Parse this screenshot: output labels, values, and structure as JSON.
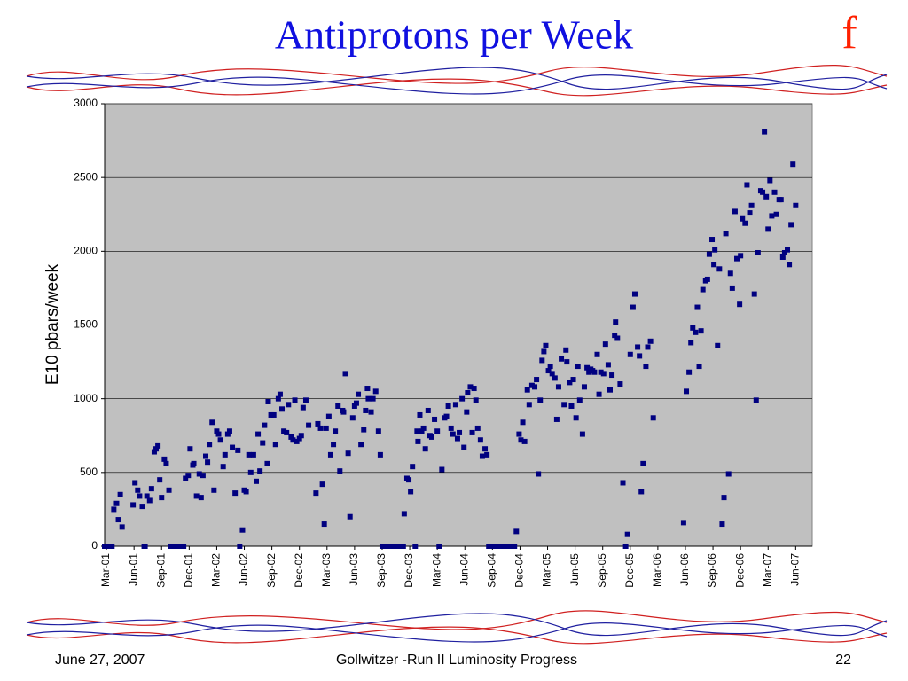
{
  "slide": {
    "title": "Antiprotons per Week",
    "logo": "f",
    "footer_left": "June 27, 2007",
    "footer_center": "Gollwitzer -Run II Luminosity Progress",
    "footer_right": "22"
  },
  "chart_data": {
    "type": "scatter",
    "ylabel": "E10 pbars/week",
    "color": "#000080",
    "plot_background": "#c0c0c0",
    "grid": true,
    "xlim": [
      -0.2,
      76.8
    ],
    "xticks": [
      {
        "value": 0,
        "label": "Mar-01"
      },
      {
        "value": 3,
        "label": "Jun-01"
      },
      {
        "value": 6,
        "label": "Sep-01"
      },
      {
        "value": 9,
        "label": "Dec-01"
      },
      {
        "value": 12,
        "label": "Mar-02"
      },
      {
        "value": 15,
        "label": "Jun-02"
      },
      {
        "value": 18,
        "label": "Sep-02"
      },
      {
        "value": 21,
        "label": "Dec-02"
      },
      {
        "value": 24,
        "label": "Mar-03"
      },
      {
        "value": 27,
        "label": "Jun-03"
      },
      {
        "value": 30,
        "label": "Sep-03"
      },
      {
        "value": 33,
        "label": "Dec-03"
      },
      {
        "value": 36,
        "label": "Mar-04"
      },
      {
        "value": 39,
        "label": "Jun-04"
      },
      {
        "value": 42,
        "label": "Sep-04"
      },
      {
        "value": 45,
        "label": "Dec-04"
      },
      {
        "value": 48,
        "label": "Mar-05"
      },
      {
        "value": 51,
        "label": "Jun-05"
      },
      {
        "value": 54,
        "label": "Sep-05"
      },
      {
        "value": 57,
        "label": "Dec-05"
      },
      {
        "value": 60,
        "label": "Mar-06"
      },
      {
        "value": 63,
        "label": "Jun-06"
      },
      {
        "value": 66,
        "label": "Sep-06"
      },
      {
        "value": 69,
        "label": "Dec-06"
      },
      {
        "value": 72,
        "label": "Mar-07"
      },
      {
        "value": 75,
        "label": "Jun-07"
      }
    ],
    "ylim": [
      0,
      3000
    ],
    "yticks": [
      0,
      500,
      1000,
      1500,
      2000,
      2500,
      3000
    ],
    "x": [
      -0.2,
      0,
      0.3,
      0.6,
      0.8,
      1.1,
      1.3,
      1.5,
      1.7,
      2.9,
      3.1,
      3.4,
      3.6,
      3.9,
      4.1,
      4.2,
      4.4,
      4.7,
      4.9,
      5.2,
      5.4,
      5.6,
      5.8,
      6.0,
      6.3,
      6.5,
      6.8,
      7.0,
      7.2,
      7.5,
      7.7,
      8.0,
      8.2,
      8.4,
      8.6,
      8.9,
      9.1,
      9.4,
      9.5,
      9.8,
      10.1,
      10.3,
      10.5,
      10.8,
      11.0,
      11.2,
      11.5,
      11.7,
      12.0,
      12.2,
      12.4,
      12.7,
      12.9,
      13.2,
      13.4,
      13.7,
      14.0,
      14.3,
      14.5,
      14.8,
      15.0,
      15.2,
      15.5,
      15.7,
      16.0,
      16.3,
      16.5,
      16.7,
      17.0,
      17.2,
      17.5,
      17.6,
      17.9,
      18.2,
      18.4,
      18.7,
      18.9,
      19.1,
      19.3,
      19.6,
      19.8,
      20.1,
      20.3,
      20.5,
      20.7,
      21.0,
      21.2,
      21.4,
      21.7,
      22.0,
      22.8,
      23.0,
      23.3,
      23.5,
      23.7,
      23.9,
      24.2,
      24.4,
      24.7,
      24.9,
      25.2,
      25.4,
      25.7,
      25.8,
      26.0,
      26.3,
      26.5,
      26.8,
      27.0,
      27.2,
      27.4,
      27.7,
      28.0,
      28.2,
      28.4,
      28.5,
      28.8,
      29.0,
      29.3,
      29.6,
      29.8,
      30.0,
      30.2,
      30.5,
      30.7,
      31.0,
      31.1,
      31.4,
      31.6,
      31.9,
      32.1,
      32.3,
      32.4,
      32.7,
      32.9,
      33.1,
      33.3,
      33.6,
      33.8,
      33.9,
      34.1,
      34.3,
      34.5,
      34.7,
      35.0,
      35.2,
      35.4,
      35.7,
      36.0,
      36.2,
      36.5,
      36.8,
      37.0,
      37.2,
      37.5,
      37.7,
      38.0,
      38.2,
      38.4,
      38.7,
      38.9,
      39.2,
      39.3,
      39.6,
      39.8,
      40.0,
      40.2,
      40.4,
      40.7,
      40.9,
      41.2,
      41.4,
      41.6,
      41.8,
      42.1,
      42.3,
      42.6,
      42.9,
      43.1,
      43.4,
      43.6,
      43.9,
      44.2,
      44.4,
      44.6,
      44.9,
      45.1,
      45.3,
      45.5,
      45.8,
      46.0,
      46.3,
      46.6,
      46.8,
      47.0,
      47.2,
      47.4,
      47.6,
      47.8,
      48.1,
      48.3,
      48.5,
      48.8,
      49.0,
      49.2,
      49.5,
      49.8,
      50.0,
      50.1,
      50.4,
      50.6,
      50.8,
      51.1,
      51.3,
      51.5,
      51.8,
      52.0,
      52.3,
      52.5,
      52.7,
      52.9,
      53.1,
      53.4,
      53.6,
      53.8,
      54.1,
      54.3,
      54.6,
      54.8,
      55.0,
      55.3,
      55.4,
      55.6,
      55.9,
      56.2,
      56.5,
      56.7,
      57.0,
      57.3,
      57.5,
      57.8,
      58.0,
      58.2,
      58.4,
      58.7,
      58.9,
      59.2,
      59.5,
      62.8,
      63.1,
      63.4,
      63.6,
      63.8,
      64.1,
      64.3,
      64.5,
      64.7,
      64.9,
      65.2,
      65.4,
      65.6,
      65.9,
      66.1,
      66.2,
      66.5,
      66.7,
      67.0,
      67.2,
      67.4,
      67.7,
      67.9,
      68.1,
      68.4,
      68.6,
      68.9,
      69.0,
      69.2,
      69.5,
      69.7,
      70.0,
      70.2,
      70.5,
      70.7,
      70.9,
      71.2,
      71.4,
      71.6,
      71.8,
      72.0,
      72.2,
      72.4,
      72.7,
      72.9,
      73.2,
      73.4,
      73.6,
      73.8,
      74.1,
      74.3,
      74.5,
      74.7,
      75.0
    ],
    "values": [
      0,
      0,
      0,
      0,
      250,
      290,
      180,
      350,
      130,
      280,
      430,
      380,
      340,
      270,
      0,
      0,
      340,
      310,
      390,
      640,
      660,
      680,
      450,
      330,
      590,
      560,
      380,
      0,
      0,
      0,
      0,
      0,
      0,
      0,
      460,
      480,
      660,
      550,
      560,
      340,
      490,
      330,
      480,
      610,
      570,
      690,
      840,
      380,
      780,
      760,
      720,
      540,
      620,
      760,
      780,
      670,
      360,
      650,
      0,
      110,
      380,
      370,
      620,
      500,
      620,
      440,
      760,
      510,
      700,
      820,
      560,
      980,
      890,
      890,
      690,
      1000,
      1030,
      930,
      780,
      770,
      960,
      740,
      720,
      990,
      710,
      730,
      750,
      940,
      990,
      820,
      360,
      830,
      800,
      420,
      150,
      800,
      880,
      620,
      690,
      780,
      950,
      510,
      920,
      910,
      1170,
      630,
      200,
      870,
      950,
      970,
      1030,
      690,
      790,
      920,
      1070,
      1000,
      910,
      1000,
      1050,
      780,
      620,
      0,
      0,
      0,
      0,
      0,
      0,
      0,
      0,
      0,
      0,
      0,
      220,
      460,
      450,
      370,
      540,
      0,
      780,
      710,
      890,
      780,
      800,
      660,
      920,
      750,
      740,
      860,
      780,
      0,
      520,
      870,
      880,
      950,
      800,
      760,
      960,
      730,
      770,
      1000,
      670,
      910,
      1040,
      1080,
      770,
      1070,
      990,
      800,
      720,
      610,
      660,
      620,
      0,
      0,
      0,
      0,
      0,
      0,
      0,
      0,
      0,
      0,
      0,
      0,
      100,
      760,
      720,
      840,
      710,
      1060,
      960,
      1090,
      1080,
      1130,
      490,
      990,
      1260,
      1320,
      1360,
      1190,
      1220,
      1170,
      1140,
      860,
      1080,
      1270,
      960,
      1330,
      1250,
      1110,
      950,
      1130,
      870,
      1220,
      990,
      760,
      1080,
      1210,
      1180,
      1200,
      1190,
      1180,
      1300,
      1030,
      1180,
      1170,
      1370,
      1230,
      1060,
      1160,
      1430,
      1520,
      1410,
      1100,
      430,
      0,
      80,
      1300,
      1620,
      1710,
      1350,
      1290,
      370,
      560,
      1220,
      1350,
      1390,
      870,
      160,
      1050,
      1180,
      1380,
      1480,
      1450,
      1620,
      1220,
      1460,
      1740,
      1800,
      1810,
      1980,
      2080,
      1910,
      2010,
      1360,
      1880,
      150,
      330,
      2120,
      490,
      1850,
      1750,
      2270,
      1950,
      1640,
      1970,
      2220,
      2190,
      2450,
      2260,
      2310,
      1710,
      990,
      1990,
      2410,
      2400,
      2810,
      2370,
      2150,
      2480,
      2240,
      2400,
      2250,
      2350,
      2350,
      1960,
      1990,
      2010,
      1910,
      2180,
      2590,
      2310
    ]
  }
}
